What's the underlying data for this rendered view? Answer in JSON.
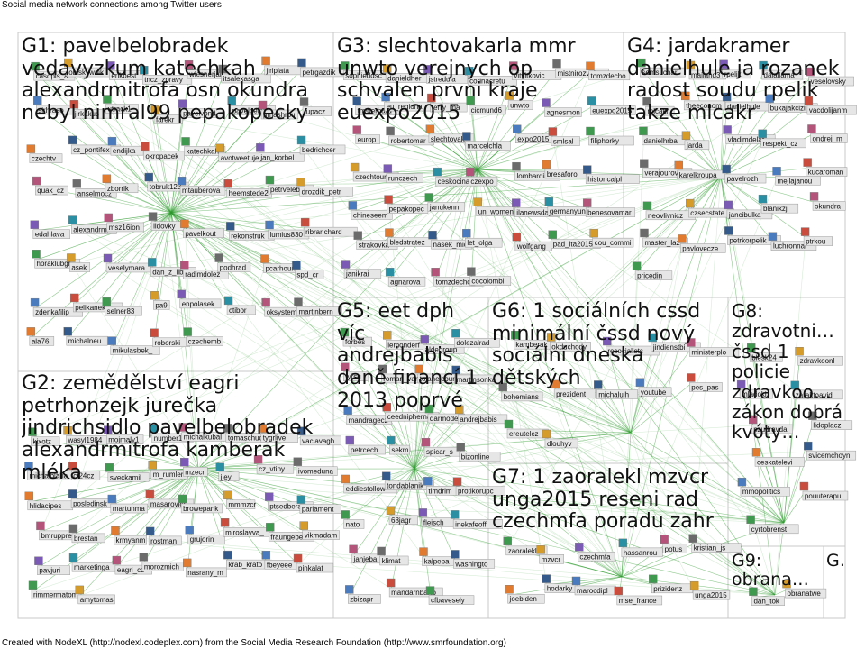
{
  "title": "Social media network connections among Twitter users",
  "footer": "Created with NodeXL (http://nodexl.codeplex.com) from the Social Media Research Foundation (http://www.smrfoundation.org)",
  "colors": {
    "edge": "#2f9a2f",
    "box": "#c8c8c8",
    "label_bg": "#e6e6e6",
    "background": "#ffffff"
  },
  "groups": [
    {
      "id": "G1",
      "title": "G1: pavelbelobradek vedavyzkum katechkah alexandrmitrofa osn okundra nebyl nimral99 pepakopecky"
    },
    {
      "id": "G2",
      "title": "G2: zemědělství eagri petrhonzejk jurečka jindrichsidlo pavelbelobradek alexandrmitrofa kamberak mléka"
    },
    {
      "id": "G3",
      "title": "G3: slechtovakarla mmr unwto verejnych op schvalen prvni kraje euexpo2015"
    },
    {
      "id": "G4",
      "title": "G4: jardakramer danielhule ja rozanek radost soudu rpelik takze mlcakr"
    },
    {
      "id": "G5",
      "title": "G5: eet dph víc andrejbabis daně financí 1 2013 poprvé"
    },
    {
      "id": "G6",
      "title": "G6: 1 sociálních cssd minimální čssd nový sociální dneska dětských"
    },
    {
      "id": "G7",
      "title": "G7: 1 zaoralekl mzvcr unga2015 reseni rad czechmfa poradu zahr"
    },
    {
      "id": "G8",
      "title": "G8: zdravotni… čssd 1 policie zdravkoo… zákon dobrá kvóty…"
    },
    {
      "id": "G9",
      "title": "G9: obrana…"
    },
    {
      "id": "G10",
      "title": "G…"
    }
  ],
  "nodes": {
    "G1": [
      "casopis_a",
      "obiskywaik",
      "erikbest",
      "tncz_zpravy",
      "wiesnerjan",
      "itsalexasgari",
      "jiriplata",
      "petrgazdik",
      "sirhraso",
      "jirkakus",
      "utrack1",
      "farekr",
      "pavelvond",
      "pavelbelob",
      "pmashrou",
      "lupacz",
      "czechtv",
      "cz_pontifex",
      "endijka",
      "okropacek",
      "katechkah",
      "avotweetuje",
      "jan_korbel",
      "bedrichcer",
      "quak_cz",
      "anselmocz",
      "zborrik",
      "tobruk123",
      "mtauberova",
      "heemstede2",
      "petrveleba",
      "drozdik_petr",
      "edahlava",
      "alexandrmi",
      "msz16ion",
      "lidovky",
      "pavelkout",
      "rekonstruk",
      "lumius830",
      "ribrarichard",
      "horaklubgr",
      "asek",
      "veselymara",
      "dan_z_libe",
      "radimdolez",
      "podhrad",
      "pcarhoun",
      "spd_cr",
      "zdenkafilip",
      "pelikanekcz",
      "selner83",
      "pa9",
      "enpolasek",
      "ctibor",
      "oksystemcz",
      "martinbern",
      "ala76",
      "michalneu",
      "mikulasbek_goob",
      "roborski",
      "czechemb"
    ],
    "G2": [
      "kixotz",
      "wasyl1984",
      "mojmaly1",
      "number10g",
      "michalkubal",
      "tomaschuck",
      "tygrlive",
      "vaclavagh",
      "michalblaha",
      "ct24cz",
      "sveckamil",
      "m_rumler",
      "mzecr",
      "jjey",
      "cz_vtipy",
      "ivomeduna",
      "hlidacipes",
      "posledinsk",
      "martunma",
      "masarovicr",
      "browepank",
      "mmmzcr",
      "ptsedberan",
      "parlament",
      "bmruppre",
      "brestan",
      "krmyanm",
      "rostman",
      "grujorin",
      "miroslavva_la",
      "fraungeber",
      "vikmadam",
      "pavjuri",
      "marketinga",
      "eagri_cz",
      "morozmich",
      "nasrany_m",
      "krab_krato",
      "fbeyeee",
      "pinkalat",
      "rimmermatom",
      "amytomas"
    ],
    "G3": [
      "sophieddsc",
      "danieldher",
      "jstredula",
      "corinacretu",
      "vitvitkovic",
      "mistnirozvoj",
      "tomzdecho",
      "thygerhard",
      "eu_regional",
      "jerry_ma",
      "cicmund6",
      "unwto",
      "agnesmon",
      "euexpo2015",
      "europ",
      "robertomar",
      "slechtovak",
      "marcelchla",
      "expo2015",
      "smlsal",
      "filiphorky",
      "czechtouri",
      "runczech",
      "ceskocina",
      "czexpo",
      "lombardiao",
      "bresaforo",
      "historicalpl",
      "chineseem",
      "pepakopec",
      "janukenn",
      "un_women",
      "ilanewsday",
      "germanyun",
      "benesovamar",
      "strakovka",
      "bledstratezek_praha",
      "nasek_mic",
      "let_olga",
      "wolfgang",
      "pad_ita2015",
      "cou_commi",
      "janikrai",
      "agnarova",
      "tomzdecho_m",
      "cocolombi"
    ],
    "G4": [
      "semsuchari",
      "mailand3",
      "rpelik",
      "dalailama",
      "veselovsky",
      "mlcakr",
      "theeconom",
      "danielhule",
      "bukajakcizi",
      "vacdolijanmolacek",
      "danielhrba",
      "jarda",
      "vladimdelafonta",
      "respekt_cz",
      "ondrej_m",
      "verajourova",
      "karelkroupa",
      "pavelrozh",
      "mejlajanou",
      "kucaroman",
      "neovlivnicz",
      "czsecstate",
      "jancibulka",
      "blanikzj",
      "okundra",
      "master_laz",
      "pavlovecze",
      "petrkorpelik",
      "luchronnar",
      "ptrkou",
      "pricedin"
    ],
    "G5": [
      "forbes",
      "lemonderf",
      "aldegroup",
      "dolezalrad",
      "tyrsu",
      "roman_van",
      "tolahelcoune",
      "martinsonka",
      "mandragecz",
      "ceednipherna",
      "darmodej",
      "andrejbabis",
      "petrcech",
      "sekm",
      "spicar_s",
      "bizonline",
      "eddiestollow",
      "tondablanik",
      "timdrim",
      "protikorupc",
      "nato",
      "68jagr",
      "fleisch",
      "inekafeoffi",
      "janjeba",
      "klimat",
      "kalpepa",
      "washingto",
      "zbizapr",
      "mandarnbarto",
      "cfbavesely"
    ],
    "G6": [
      "kamberak",
      "okduchody",
      "resocialists",
      "jindienstbier",
      "ministerplo_icics",
      "bohemians",
      "prezident",
      "michalulh",
      "youtube",
      "pes_pas",
      "ereutelcz",
      "dlouhyv"
    ],
    "G7": [
      "zaoralekl",
      "mzvcr",
      "czechmfa",
      "hassanrou",
      "potus",
      "kristian_js",
      "joebiden",
      "hodarky",
      "marocdipl",
      "mse_france",
      "prizidenz",
      "unga2015"
    ],
    "G8": [
      "blesk24",
      "zdravkoonl",
      "mladoki",
      "zaraktoavid",
      "nzudravda",
      "lidoplacz",
      "ceskatelevize",
      "svicemchoyn",
      "mmopolitics",
      "pouuterapu",
      "cyrtobrenst"
    ],
    "G9": [
      "dan_tok",
      "obranatwe"
    ]
  }
}
